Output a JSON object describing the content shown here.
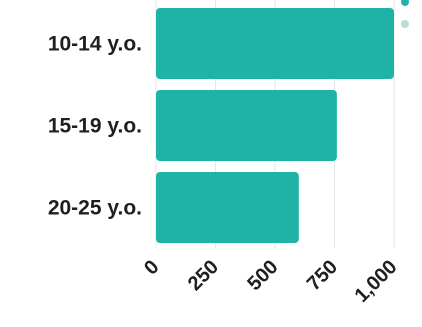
{
  "chart_data": {
    "type": "bar",
    "orientation": "horizontal",
    "title": "",
    "xlabel": "",
    "ylabel": "",
    "categories": [
      "10-14 y.o.",
      "15-19 y.o.",
      "20-25 y.o."
    ],
    "series": [
      {
        "values": [
          1000,
          760,
          600
        ],
        "color": "#1fb3a6"
      }
    ],
    "xlim": [
      0,
      1000
    ],
    "x_ticks": [
      "0",
      "250",
      "500",
      "750",
      "1,000"
    ],
    "grid": true,
    "legend_markers": [
      "#1fb3a6",
      "#b9dcd6"
    ],
    "legend_placement": "top-right"
  }
}
